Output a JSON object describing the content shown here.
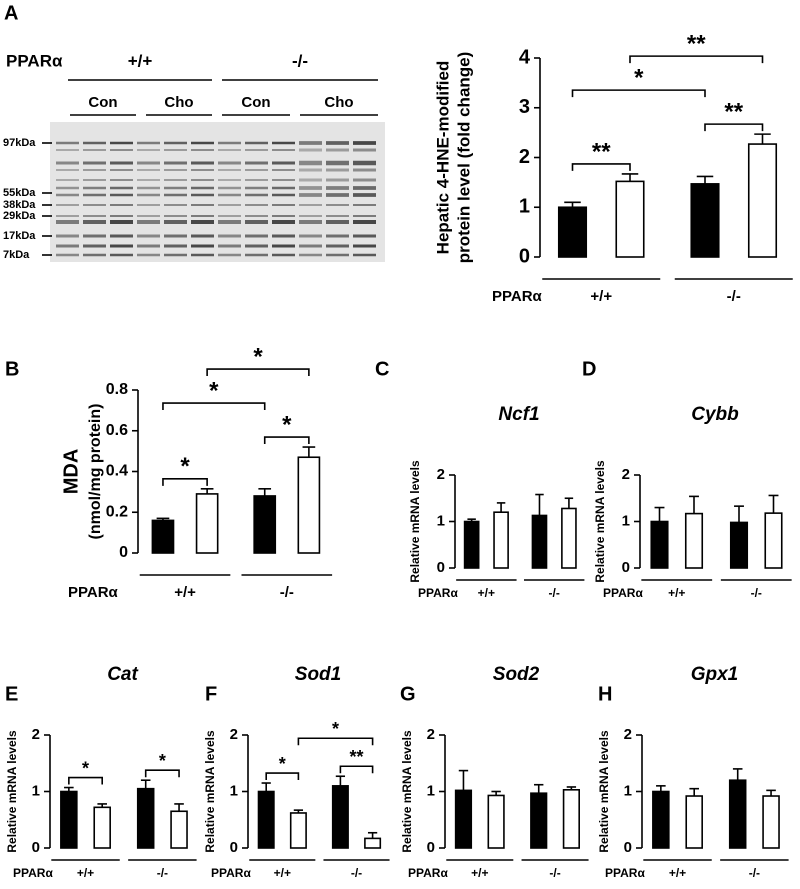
{
  "blot": {
    "panel": "A",
    "group_label": "PPARα",
    "genotypes": [
      "+/+",
      "-/-"
    ],
    "treatments": [
      "Con",
      "Cho",
      "Con",
      "Cho"
    ],
    "markers": [
      "97kDa",
      "55kDa",
      "38kDa",
      "29kDa",
      "17kDa",
      "7kDa"
    ]
  },
  "chart_data": [
    {
      "type": "bar",
      "panel": "A",
      "ylabel": [
        "Hepatic 4-HNE-modified",
        "protein level (fold change)"
      ],
      "group_label": "PPARα",
      "categories": [
        "+/+",
        "-/-"
      ],
      "series": [
        {
          "color": "#000000",
          "values": [
            1.0,
            1.47
          ],
          "errors": [
            0.1,
            0.15
          ]
        },
        {
          "color": "#ffffff",
          "values": [
            1.52,
            2.27
          ],
          "errors": [
            0.15,
            0.2
          ]
        }
      ],
      "ylim": [
        0,
        4
      ],
      "yticks": [
        0,
        1,
        2,
        3,
        4
      ],
      "annotations": [
        {
          "text": "**",
          "bars": [
            0,
            1
          ]
        },
        {
          "text": "**",
          "bars": [
            2,
            3
          ]
        },
        {
          "text": "*",
          "bars": [
            0,
            2
          ]
        },
        {
          "text": "**",
          "bars": [
            1,
            3
          ]
        }
      ]
    },
    {
      "type": "bar",
      "panel": "B",
      "ylabel": [
        "MDA",
        "(nmol/mg protein)"
      ],
      "group_label": "PPARα",
      "categories": [
        "+/+",
        "-/-"
      ],
      "series": [
        {
          "color": "#000000",
          "values": [
            0.16,
            0.28
          ],
          "errors": [
            0.01,
            0.035
          ]
        },
        {
          "color": "#ffffff",
          "values": [
            0.29,
            0.47
          ],
          "errors": [
            0.025,
            0.05
          ]
        }
      ],
      "ylim": [
        0,
        0.8
      ],
      "yticks": [
        0,
        0.2,
        0.4,
        0.6,
        0.8
      ],
      "annotations": [
        {
          "text": "*",
          "bars": [
            0,
            1
          ]
        },
        {
          "text": "*",
          "bars": [
            2,
            3
          ]
        },
        {
          "text": "*",
          "bars": [
            0,
            2
          ]
        },
        {
          "text": "*",
          "bars": [
            1,
            3
          ]
        }
      ]
    },
    {
      "type": "bar",
      "panel": "C",
      "title": "Ncf1",
      "ylabel": [
        "Relative mRNA levels"
      ],
      "group_label": "PPARα",
      "categories": [
        "+/+",
        "-/-"
      ],
      "series": [
        {
          "color": "#000000",
          "values": [
            1.0,
            1.13
          ],
          "errors": [
            0.05,
            0.45
          ]
        },
        {
          "color": "#ffffff",
          "values": [
            1.2,
            1.28
          ],
          "errors": [
            0.2,
            0.22
          ]
        }
      ],
      "ylim": [
        0,
        2
      ],
      "yticks": [
        0,
        1,
        2
      ],
      "annotations": []
    },
    {
      "type": "bar",
      "panel": "D",
      "title": "Cybb",
      "ylabel": [
        "Relative mRNA levels"
      ],
      "group_label": "PPARα",
      "categories": [
        "+/+",
        "-/-"
      ],
      "series": [
        {
          "color": "#000000",
          "values": [
            1.0,
            0.98
          ],
          "errors": [
            0.3,
            0.35
          ]
        },
        {
          "color": "#ffffff",
          "values": [
            1.17,
            1.18
          ],
          "errors": [
            0.37,
            0.38
          ]
        }
      ],
      "ylim": [
        0,
        2
      ],
      "yticks": [
        0,
        1,
        2
      ],
      "annotations": []
    },
    {
      "type": "bar",
      "panel": "E",
      "title": "Cat",
      "ylabel": [
        "Relative mRNA levels"
      ],
      "group_label": "PPARα",
      "categories": [
        "+/+",
        "-/-"
      ],
      "series": [
        {
          "color": "#000000",
          "values": [
            1.0,
            1.05
          ],
          "errors": [
            0.07,
            0.15
          ]
        },
        {
          "color": "#ffffff",
          "values": [
            0.72,
            0.65
          ],
          "errors": [
            0.06,
            0.13
          ]
        }
      ],
      "ylim": [
        0,
        2
      ],
      "yticks": [
        0,
        1,
        2
      ],
      "annotations": [
        {
          "text": "*",
          "bars": [
            0,
            1
          ]
        },
        {
          "text": "*",
          "bars": [
            2,
            3
          ]
        }
      ]
    },
    {
      "type": "bar",
      "panel": "F",
      "title": "Sod1",
      "ylabel": [
        "Relative mRNA levels"
      ],
      "group_label": "PPARα",
      "categories": [
        "+/+",
        "-/-"
      ],
      "series": [
        {
          "color": "#000000",
          "values": [
            1.0,
            1.1
          ],
          "errors": [
            0.15,
            0.17
          ]
        },
        {
          "color": "#ffffff",
          "values": [
            0.62,
            0.17
          ],
          "errors": [
            0.05,
            0.1
          ]
        }
      ],
      "ylim": [
        0,
        2
      ],
      "yticks": [
        0,
        1,
        2
      ],
      "annotations": [
        {
          "text": "*",
          "bars": [
            0,
            1
          ]
        },
        {
          "text": "**",
          "bars": [
            2,
            3
          ]
        },
        {
          "text": "*",
          "bars": [
            1,
            3
          ]
        }
      ]
    },
    {
      "type": "bar",
      "panel": "G",
      "title": "Sod2",
      "ylabel": [
        "Relative mRNA levels"
      ],
      "group_label": "PPARα",
      "categories": [
        "+/+",
        "-/-"
      ],
      "series": [
        {
          "color": "#000000",
          "values": [
            1.02,
            0.97
          ],
          "errors": [
            0.35,
            0.15
          ]
        },
        {
          "color": "#ffffff",
          "values": [
            0.93,
            1.03
          ],
          "errors": [
            0.07,
            0.05
          ]
        }
      ],
      "ylim": [
        0,
        2
      ],
      "yticks": [
        0,
        1,
        2
      ],
      "annotations": []
    },
    {
      "type": "bar",
      "panel": "H",
      "title": "Gpx1",
      "ylabel": [
        "Relative mRNA levels"
      ],
      "group_label": "PPARα",
      "categories": [
        "+/+",
        "-/-"
      ],
      "series": [
        {
          "color": "#000000",
          "values": [
            1.0,
            1.2
          ],
          "errors": [
            0.1,
            0.2
          ]
        },
        {
          "color": "#ffffff",
          "values": [
            0.92,
            0.92
          ],
          "errors": [
            0.13,
            0.1
          ]
        }
      ],
      "ylim": [
        0,
        2
      ],
      "yticks": [
        0,
        1,
        2
      ],
      "annotations": []
    }
  ]
}
